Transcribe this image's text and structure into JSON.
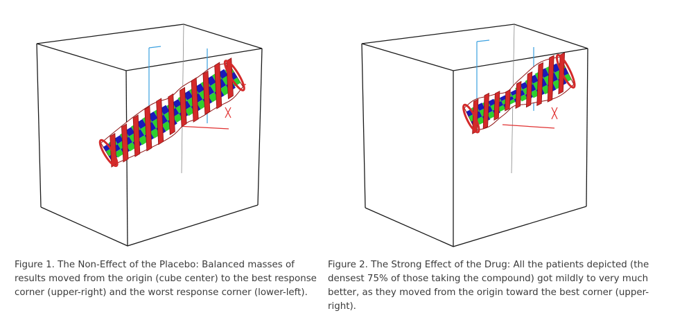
{
  "figures": [
    {
      "id": "fig1",
      "caption": "Figure 1.  The Non-Effect of the Placebo: Balanced masses of results moved from the origin (cube center) to the best response corner (upper-right) and the worst response corner (lower-left).",
      "shape": "elongated-diagonal-ribbon-surface"
    },
    {
      "id": "fig2",
      "caption": "Figure 2.  The Strong Effect of the Drug:  All the patients depicted (the densest 75% of those taking the compound) got mildly to very much better, as they moved from the origin toward the best corner (upper-right).",
      "shape": "compact-upper-right-ribbon-surface"
    }
  ],
  "colors": {
    "cube_edge": "#1a1a1a",
    "ribbon_red": "#d42a2a",
    "ribbon_red_dark": "#8e1212",
    "core_blue": "#1a1ab8",
    "core_green": "#2fcf2f",
    "axis_blue": "#3aa0e0",
    "axis_red": "#e03030"
  }
}
